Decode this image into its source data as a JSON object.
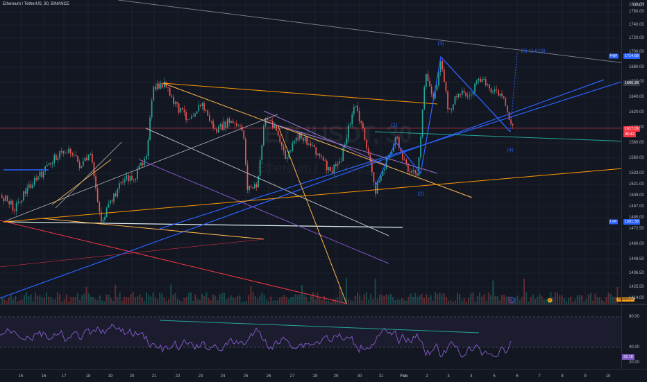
{
  "header": {
    "title": "Ethereum / TetherUS, 30, BINANCE",
    "currency": "USDT"
  },
  "watermark": {
    "symbol": "ETHUSDT, 30",
    "name": "Ethereum / TetherUS"
  },
  "price_axis": {
    "ticks": [
      "1800.00",
      "1760.00",
      "1740.00",
      "1720.00",
      "1700.00",
      "1680.00",
      "1660.00",
      "1640.00",
      "1620.00",
      "1600.00",
      "1580.00",
      "1560.00",
      "1533.00",
      "1521.00",
      "1509.00",
      "1497.00",
      "1485.00",
      "1472.50",
      "1460.00",
      "1448.50",
      "1436.50",
      "1425.50",
      "1414.00"
    ],
    "high_tag": "High",
    "high_value": "1714.68",
    "level_value": "1666.38",
    "current_price": "1617.09",
    "countdown": "05:42",
    "low_tag": "Low",
    "low_value": "1501.39"
  },
  "rsi_axis": {
    "ticks": [
      "80.00",
      "40.00",
      "20.00"
    ],
    "badge": "32.18"
  },
  "time_axis": {
    "labels": [
      "15",
      "16",
      "17",
      "18",
      "19",
      "20",
      "21",
      "22",
      "23",
      "24",
      "25",
      "26",
      "27",
      "28",
      "29",
      "30",
      "31",
      "Feb",
      "2",
      "3",
      "4",
      "5",
      "6",
      "7",
      "8",
      "9",
      "10"
    ]
  },
  "wave_labels": {
    "w1": "(1)",
    "w2": "(2)",
    "w3": "(3)",
    "w4": "(4)",
    "w5": "(5) (1.618)"
  },
  "events": {
    "e1": "E",
    "e2": "D",
    "dividend": "Dividends"
  },
  "colors": {
    "background": "#131722",
    "up": "#26a69a",
    "down": "#ef5350",
    "wave": "#2962ff",
    "rsi": "#7e57c2",
    "current_price": "#f23645"
  }
}
